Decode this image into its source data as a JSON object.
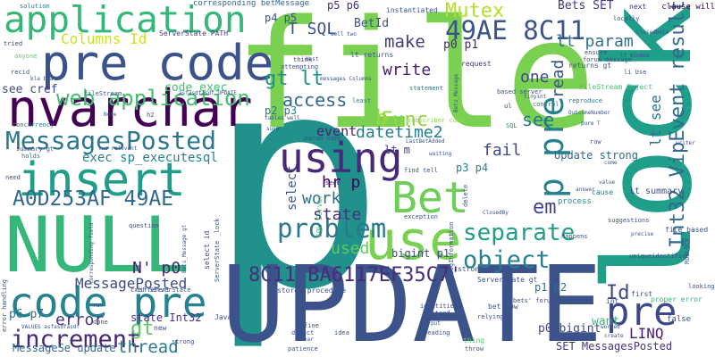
{
  "words": [
    {
      "text": "p",
      "color": "#21918c"
    },
    {
      "text": "file",
      "color": "#7ad151"
    },
    {
      "text": "UPDATE",
      "color": "#3b528b"
    },
    {
      "text": "lock",
      "color": "#1f9e89"
    },
    {
      "text": "NULL",
      "color": "#35b779"
    },
    {
      "text": "pre code",
      "color": "#3b528b"
    },
    {
      "text": "nvarchar",
      "color": "#440154"
    },
    {
      "text": "application",
      "color": "#35b779"
    },
    {
      "text": "insert",
      "color": "#1f9e89"
    },
    {
      "text": "use",
      "color": "#7ad151"
    },
    {
      "text": "using",
      "color": "#482878"
    },
    {
      "text": "Bet",
      "color": "#6ece58"
    },
    {
      "text": "code pre",
      "color": "#26828e"
    },
    {
      "text": "pre",
      "color": "#3e4989"
    },
    {
      "text": "p pre",
      "color": "#26828e"
    },
    {
      "text": "MessagesPosted",
      "color": "#2a788e"
    },
    {
      "text": "A0D253AF 49AE",
      "color": "#31688e"
    },
    {
      "text": "8C11 BA6117EF35C7'",
      "color": "#472d7b"
    },
    {
      "text": "problem",
      "color": "#2a788e"
    },
    {
      "text": "object",
      "color": "#26828e"
    },
    {
      "text": "web application",
      "color": "#44bf70"
    },
    {
      "text": "increment",
      "color": "#482878"
    },
    {
      "text": "49AE 8C11",
      "color": "#3b528b"
    },
    {
      "text": "Mutex",
      "color": "#b5de2b"
    },
    {
      "text": "separate",
      "color": "#1f9e89"
    },
    {
      "text": "Int32 VipEvent result",
      "color": "#31688e"
    },
    {
      "text": "see",
      "color": "#2a788e"
    },
    {
      "text": "Func",
      "color": "#90d743"
    },
    {
      "text": "access",
      "color": "#31688e"
    },
    {
      "text": "gt lt",
      "color": "#21918c"
    },
    {
      "text": "MessagePosted",
      "color": "#3e4989"
    },
    {
      "text": "make",
      "color": "#443983"
    },
    {
      "text": "write",
      "color": "#481f70"
    },
    {
      "text": "one",
      "color": "#3e4989"
    },
    {
      "text": "Id",
      "color": "#3e4989"
    },
    {
      "text": "em",
      "color": "#414487"
    },
    {
      "text": "read",
      "color": "#3b528b"
    },
    {
      "text": "LINQ",
      "color": "#481f70"
    },
    {
      "text": "error",
      "color": "#443983"
    },
    {
      "text": "datetime2",
      "color": "#287c8e"
    },
    {
      "text": "state",
      "color": "#46327e"
    },
    {
      "text": "hr p",
      "color": "#440154"
    },
    {
      "text": "fail",
      "color": "#3e4989"
    },
    {
      "text": "work",
      "color": "#2c728e"
    },
    {
      "text": "used",
      "color": "#5ec962"
    },
    {
      "text": "N' p0",
      "color": "#482475"
    },
    {
      "text": "gt",
      "color": "#5ec962"
    },
    {
      "text": "thread",
      "color": "#2a788e"
    },
    {
      "text": "b",
      "color": "#93d741"
    },
    {
      "text": "lt param",
      "color": "#2c728e"
    },
    {
      "text": "T SQL",
      "color": "#3b528b"
    },
    {
      "text": "Columns Id",
      "color": "#d0e11c"
    },
    {
      "text": "see cref",
      "color": "#3e4989"
    },
    {
      "text": "code exec",
      "color": "#44bf70"
    },
    {
      "text": "exec sp_executesql",
      "color": "#26828e"
    },
    {
      "text": "event",
      "color": "#481f70"
    },
    {
      "text": "p6 p7",
      "color": "#2c728e"
    },
    {
      "text": "state Int32",
      "color": "#46327e"
    },
    {
      "text": "MessageSe update",
      "color": "#31688e"
    },
    {
      "text": "Update strong",
      "color": "#31688e"
    },
    {
      "text": "SET MessagesPosted",
      "color": "#46327e"
    },
    {
      "text": "p0 bigint",
      "color": "#3e4989"
    },
    {
      "text": "bigint p1",
      "color": "#3e4989"
    },
    {
      "text": "p1 p2",
      "color": "#2c728e"
    },
    {
      "text": "p3 p4",
      "color": "#26828e"
    },
    {
      "text": "p2 p3",
      "color": "#2a788e"
    },
    {
      "text": "p4 p5",
      "color": "#3b528b"
    },
    {
      "text": "p5 p6",
      "color": "#472d7b"
    },
    {
      "text": "p0 p1",
      "color": "#482878"
    },
    {
      "text": "BetId",
      "color": "#3b528b"
    },
    {
      "text": "Bets SET",
      "color": "#443983"
    },
    {
      "text": "lt see",
      "color": "#2c728e"
    },
    {
      "text": "lt m",
      "color": "#3e4989"
    },
    {
      "text": "want",
      "color": "#35b779"
    },
    {
      "text": "select",
      "color": "#3b528b"
    },
    {
      "text": "lt summary",
      "color": "#3b528b"
    },
    {
      "text": "fail",
      "color": "#3e4989"
    },
    {
      "text": "corresponding betMessage",
      "color": "#31688e"
    },
    {
      "text": "ServerState PATH",
      "color": "#443983"
    },
    {
      "text": "instantiated",
      "color": "#3b528b"
    },
    {
      "text": "clause will",
      "color": "#440154"
    },
    {
      "text": "next",
      "color": "#46327e"
    },
    {
      "text": "solution",
      "color": "#287c8e"
    },
    {
      "text": "anyone",
      "color": "#5ec962"
    },
    {
      "text": "tried",
      "color": "#443983"
    },
    {
      "text": "think",
      "color": "#443983"
    },
    {
      "text": "attempting",
      "color": "#3b528b"
    },
    {
      "text": "request",
      "color": "#46327e"
    },
    {
      "text": "lt returns",
      "color": "#3b528b"
    },
    {
      "text": "returns gt",
      "color": "#3b528b"
    },
    {
      "text": "based server",
      "color": "#3b528b"
    },
    {
      "text": "reproduce",
      "color": "#2a788e"
    },
    {
      "text": "control",
      "color": "#2a788e"
    },
    {
      "text": "Bets_Message",
      "color": "#3b528b"
    },
    {
      "text": "statement",
      "color": "#2a788e"
    },
    {
      "text": "least",
      "color": "#2a788e"
    },
    {
      "text": "ul",
      "color": "#46327e"
    },
    {
      "text": "SQL",
      "color": "#2a788e"
    },
    {
      "text": "subscriber code",
      "color": "#90d743"
    },
    {
      "text": "param name",
      "color": "#3b528b"
    },
    {
      "text": "LastBetAdded",
      "color": "#3b528b"
    },
    {
      "text": "waiting",
      "color": "#3b528b"
    },
    {
      "text": "find tell",
      "color": "#3b528b"
    },
    {
      "text": "seem",
      "color": "#3b528b"
    },
    {
      "text": "SQL Server",
      "color": "#44bf70"
    },
    {
      "text": "ServerState _lock",
      "color": "#3b528b"
    },
    {
      "text": "select id",
      "color": "#3e4989"
    },
    {
      "text": "exception",
      "color": "#3b528b"
    },
    {
      "text": "strong Update",
      "color": "#3b528b"
    },
    {
      "text": "stored procedure",
      "color": "#3b528b"
    },
    {
      "text": "ServerState gt",
      "color": "#3b528b"
    },
    {
      "text": "Java",
      "color": "#3b528b"
    },
    {
      "text": "new",
      "color": "#3b528b"
    },
    {
      "text": "done",
      "color": "#3b528b"
    },
    {
      "text": "different",
      "color": "#3b528b"
    },
    {
      "text": "question",
      "color": "#3b528b"
    },
    {
      "text": "error handling",
      "color": "#3b528b"
    },
    {
      "text": "concurrency",
      "color": "#2a788e"
    },
    {
      "text": "summary gt",
      "color": "#3b528b"
    },
    {
      "text": "holds",
      "color": "#2a788e"
    },
    {
      "text": "need",
      "color": "#3b528b"
    },
    {
      "text": "FileStream Object",
      "color": "#44bf70"
    },
    {
      "text": "file based",
      "color": "#3b528b"
    },
    {
      "text": "process",
      "color": "#21918c"
    },
    {
      "text": "cause",
      "color": "#2a788e"
    },
    {
      "text": "suggestions",
      "color": "#3b528b"
    },
    {
      "text": "happens",
      "color": "#3b528b"
    },
    {
      "text": "uniqueidentifier",
      "color": "#3b528b"
    },
    {
      "text": "proper error",
      "color": "#35b779"
    },
    {
      "text": "first",
      "color": "#3b528b"
    },
    {
      "text": "int",
      "color": "#3b528b"
    },
    {
      "text": "false",
      "color": "#3b528b"
    },
    {
      "text": "ROWLOCK",
      "color": "#3b528b"
    },
    {
      "text": "bet row",
      "color": "#3b528b"
    },
    {
      "text": "strong",
      "color": "#3b528b"
    },
    {
      "text": "reading",
      "color": "#3b528b"
    },
    {
      "text": "thing",
      "color": "#5ec962"
    },
    {
      "text": "patience",
      "color": "#3b528b"
    },
    {
      "text": "idea",
      "color": "#3b528b"
    },
    {
      "text": "detect",
      "color": "#3b528b"
    },
    {
      "text": "fine",
      "color": "#3b528b"
    },
    {
      "text": "identities",
      "color": "#3b528b"
    },
    {
      "text": "instead",
      "color": "#3b528b"
    },
    {
      "text": "ClosedBy",
      "color": "#3b528b"
    },
    {
      "text": "delete",
      "color": "#3b528b"
    },
    {
      "text": "1 LogInformation",
      "color": "#3b528b"
    },
    {
      "text": "row",
      "color": "#3b528b"
    },
    {
      "text": "ensure",
      "color": "#3b528b"
    },
    {
      "text": "forum message",
      "color": "#3b528b"
    },
    {
      "text": "locally",
      "color": "#3b528b"
    },
    {
      "text": "fileStream",
      "color": "#3b528b"
    },
    {
      "text": "VALUES asfasdfasdf",
      "color": "#3b528b"
    },
    {
      "text": "recid",
      "color": "#3b528b"
    },
    {
      "text": "throw",
      "color": "#3b528b"
    },
    {
      "text": "bets' forum",
      "color": "#3b528b"
    },
    {
      "text": "relying",
      "color": "#3b528b"
    },
    {
      "text": "looking",
      "color": "#3b528b"
    },
    {
      "text": "writer",
      "color": "#3b528b"
    },
    {
      "text": "two relevant",
      "color": "#3b528b"
    },
    {
      "text": "corresponding field",
      "color": "#3b528b"
    },
    {
      "text": "cref ServerState",
      "color": "#3b528b"
    },
    {
      "text": "messages Columns",
      "color": "#3b528b"
    },
    {
      "text": "asfasdfasdf UPDATE",
      "color": "#3b528b"
    },
    {
      "text": "tables well",
      "color": "#3b528b"
    },
    {
      "text": "OutcomeNumber",
      "color": "#3b528b"
    },
    {
      "text": "pure T",
      "color": "#3b528b"
    },
    {
      "text": "answer",
      "color": "#3b528b"
    },
    {
      "text": "value",
      "color": "#3b528b"
    },
    {
      "text": "precise",
      "color": "#3b528b"
    },
    {
      "text": "worked",
      "color": "#3b528b"
    },
    {
      "text": "create",
      "color": "#3b528b"
    },
    {
      "text": "come",
      "color": "#3b528b"
    },
    {
      "text": "lt Window",
      "color": "#3b528b"
    },
    {
      "text": "li Use",
      "color": "#3b528b"
    },
    {
      "text": "tinyint",
      "color": "#3b528b"
    },
    {
      "text": "put",
      "color": "#3b528b"
    },
    {
      "text": "var",
      "color": "#3b528b"
    },
    {
      "text": "run",
      "color": "#3b528b"
    },
    {
      "text": "bla bla",
      "color": "#3b528b"
    },
    {
      "text": "well two",
      "color": "#3b528b"
    },
    {
      "text": "ClosedDate",
      "color": "#3b528b"
    },
    {
      "text": "Bets_Message gt",
      "color": "#3b528b"
    },
    {
      "text": "h2",
      "color": "#3b528b"
    },
    {
      "text": "Note",
      "color": "#3b528b"
    },
    {
      "text": "sure",
      "color": "#3b528b"
    },
    {
      "text": "best",
      "color": "#3b528b"
    },
    {
      "text": "way",
      "color": "#3b528b"
    },
    {
      "text": "also",
      "color": "#3b528b"
    },
    {
      "text": "server",
      "color": "#3b528b"
    },
    {
      "text": "data",
      "color": "#3b528b"
    }
  ]
}
